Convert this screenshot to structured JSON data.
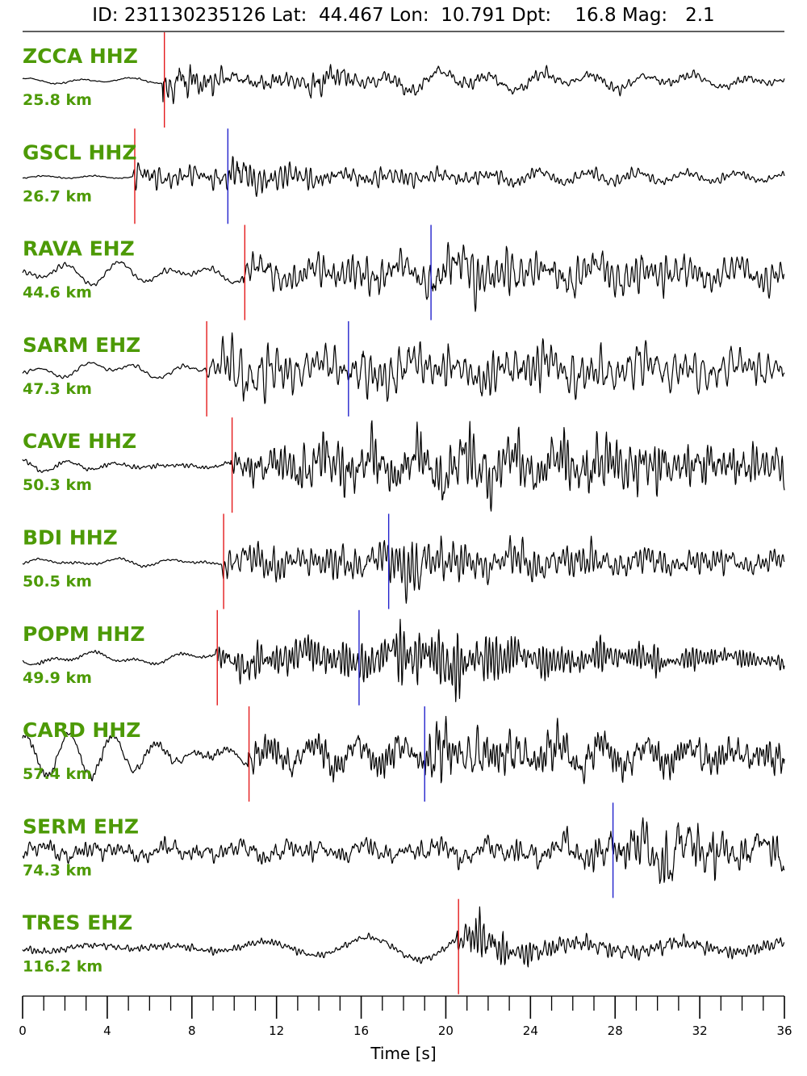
{
  "title": "ID: 231130235126 Lat:  44.467 Lon:  10.791 Dpt:    16.8 Mag:   2.1",
  "chart_data": {
    "type": "line",
    "xlabel": "Time [s]",
    "xlim": [
      0,
      36
    ],
    "x_major_ticks": [
      "0",
      "4",
      "8",
      "12",
      "16",
      "20",
      "24",
      "28",
      "32",
      "36"
    ],
    "minor_tick_step": 1,
    "colors": {
      "trace": "#000000",
      "label": "#4d9a06",
      "p_pick": "#e41a1c",
      "s_pick": "#2222cc"
    },
    "traces": [
      {
        "station": "ZCCA HHZ",
        "distance": "25.8 km",
        "p_pick": 6.7,
        "s_pick": null,
        "env": [
          [
            0,
            0.02
          ],
          [
            6.6,
            0.02
          ],
          [
            6.8,
            0.9
          ],
          [
            7.4,
            0.7
          ],
          [
            8.5,
            0.35
          ],
          [
            10,
            0.25
          ],
          [
            13,
            0.2
          ],
          [
            13.5,
            0.5
          ],
          [
            14,
            0.8
          ],
          [
            14.6,
            0.3
          ],
          [
            17,
            0.2
          ],
          [
            36,
            0.1
          ]
        ]
      },
      {
        "station": "GSCL HHZ",
        "distance": "26.7 km",
        "p_pick": 5.3,
        "s_pick": 9.7,
        "env": [
          [
            0,
            0.02
          ],
          [
            5.2,
            0.02
          ],
          [
            5.4,
            0.45
          ],
          [
            7,
            0.25
          ],
          [
            9.6,
            0.3
          ],
          [
            10,
            0.95
          ],
          [
            10.8,
            0.6
          ],
          [
            12,
            0.4
          ],
          [
            16,
            0.25
          ],
          [
            36,
            0.1
          ]
        ]
      },
      {
        "station": "RAVA EHZ",
        "distance": "44.6 km",
        "p_pick": 10.5,
        "s_pick": 19.3,
        "env": [
          [
            0,
            0.08
          ],
          [
            10.4,
            0.08
          ],
          [
            10.6,
            0.55
          ],
          [
            15,
            0.6
          ],
          [
            19.2,
            0.6
          ],
          [
            19.5,
            0.9
          ],
          [
            22,
            0.75
          ],
          [
            30,
            0.6
          ],
          [
            36,
            0.45
          ]
        ]
      },
      {
        "station": "SARM EHZ",
        "distance": "47.3 km",
        "p_pick": 8.7,
        "s_pick": 15.4,
        "env": [
          [
            0,
            0.06
          ],
          [
            8.6,
            0.06
          ],
          [
            8.9,
            0.45
          ],
          [
            10.5,
            0.8
          ],
          [
            13,
            0.5
          ],
          [
            15.3,
            0.5
          ],
          [
            15.6,
            0.8
          ],
          [
            19,
            0.75
          ],
          [
            36,
            0.45
          ]
        ]
      },
      {
        "station": "CAVE HHZ",
        "distance": "50.3 km",
        "p_pick": 9.9,
        "s_pick": null,
        "env": [
          [
            0,
            0.06
          ],
          [
            9.8,
            0.06
          ],
          [
            10,
            0.45
          ],
          [
            14,
            0.7
          ],
          [
            26,
            0.85
          ],
          [
            30,
            0.7
          ],
          [
            36,
            0.5
          ]
        ]
      },
      {
        "station": "BDI HHZ",
        "distance": "50.5 km",
        "p_pick": 9.5,
        "s_pick": 17.3,
        "env": [
          [
            0,
            0.03
          ],
          [
            9.4,
            0.03
          ],
          [
            9.7,
            0.45
          ],
          [
            12,
            0.4
          ],
          [
            17.2,
            0.45
          ],
          [
            18.5,
            0.95
          ],
          [
            20,
            0.5
          ],
          [
            36,
            0.3
          ]
        ]
      },
      {
        "station": "POPM HHZ",
        "distance": "49.9 km",
        "p_pick": 9.2,
        "s_pick": 15.9,
        "env": [
          [
            0,
            0.05
          ],
          [
            9.1,
            0.05
          ],
          [
            9.4,
            0.45
          ],
          [
            11,
            0.65
          ],
          [
            15.8,
            0.6
          ],
          [
            19.5,
            0.9
          ],
          [
            24,
            0.45
          ],
          [
            36,
            0.18
          ]
        ]
      },
      {
        "station": "CARD HHZ",
        "distance": "57.4 km",
        "p_pick": 10.7,
        "s_pick": 19.0,
        "env": [
          [
            0,
            0.12
          ],
          [
            10.6,
            0.12
          ],
          [
            10.9,
            0.5
          ],
          [
            18.9,
            0.6
          ],
          [
            19.3,
            0.95
          ],
          [
            21,
            0.7
          ],
          [
            36,
            0.55
          ]
        ]
      },
      {
        "station": "SERM EHZ",
        "distance": "74.3 km",
        "p_pick": null,
        "s_pick": 27.9,
        "env": [
          [
            0,
            0.28
          ],
          [
            16,
            0.32
          ],
          [
            26,
            0.45
          ],
          [
            27.5,
            0.7
          ],
          [
            31,
            0.95
          ],
          [
            33,
            0.7
          ],
          [
            36,
            0.55
          ]
        ]
      },
      {
        "station": "TRES EHZ",
        "distance": "116.2 km",
        "p_pick": 20.6,
        "s_pick": null,
        "env": [
          [
            0,
            0.12
          ],
          [
            20.5,
            0.12
          ],
          [
            20.8,
            0.6
          ],
          [
            21.7,
            0.95
          ],
          [
            23,
            0.45
          ],
          [
            26,
            0.3
          ],
          [
            36,
            0.22
          ]
        ]
      }
    ]
  }
}
